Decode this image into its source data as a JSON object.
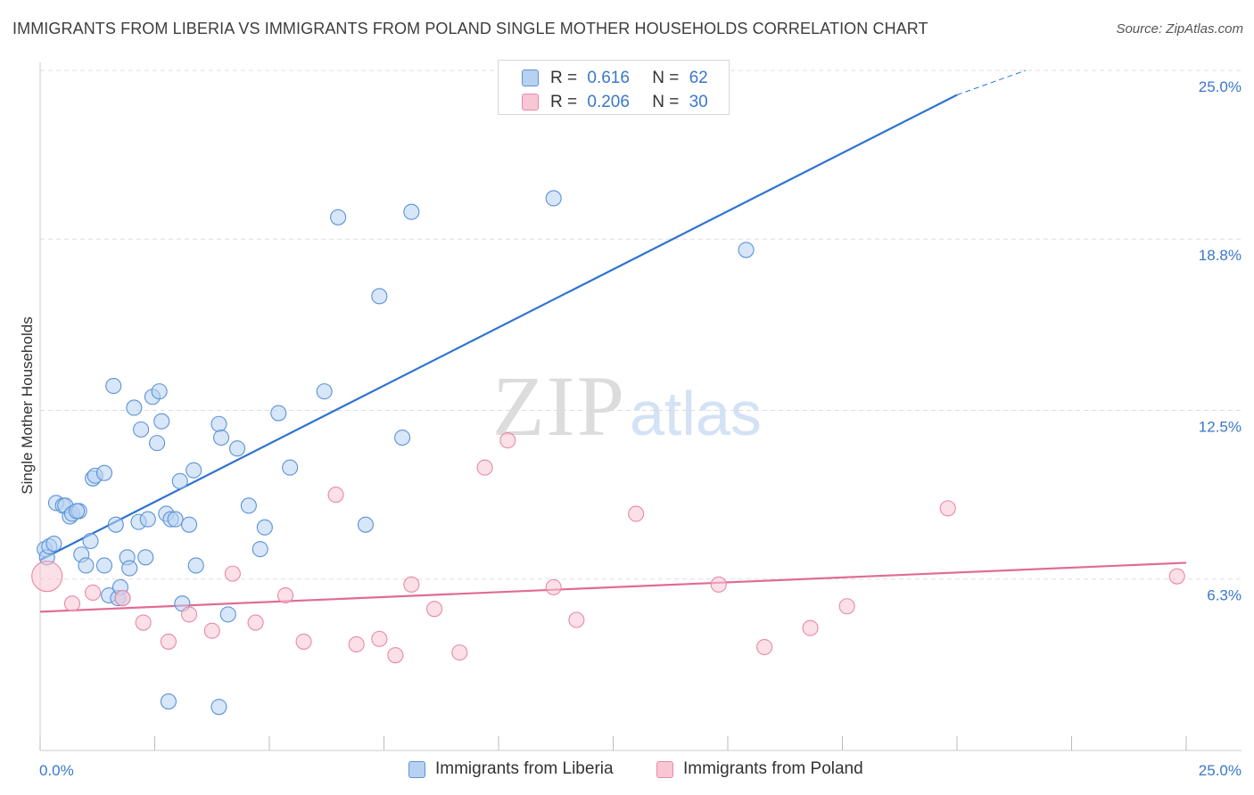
{
  "header": {
    "title": "IMMIGRANTS FROM LIBERIA VS IMMIGRANTS FROM POLAND SINGLE MOTHER HOUSEHOLDS CORRELATION CHART",
    "source": "Source: ZipAtlas.com"
  },
  "watermark": {
    "zip": "ZIP",
    "atlas": "atlas"
  },
  "legend": {
    "liberia": {
      "r_label": "R =",
      "r_value": "0.616",
      "n_label": "N =",
      "n_value": "62"
    },
    "poland": {
      "r_label": "R =",
      "r_value": "0.206",
      "n_label": "N =",
      "n_value": "30"
    }
  },
  "colors": {
    "liberia_fill": "#b7d1f2",
    "liberia_stroke": "#5b93d6",
    "liberia_line": "#2f74d0",
    "poland_fill": "#f8c6d4",
    "poland_stroke": "#e889a6",
    "poland_line": "#e06c93",
    "grid": "#dddddd",
    "tick_text": "#3a77c9"
  },
  "chart_data": {
    "type": "scatter",
    "title": "IMMIGRANTS FROM LIBERIA VS IMMIGRANTS FROM POLAND SINGLE MOTHER HOUSEHOLDS CORRELATION CHART",
    "xlabel": "",
    "ylabel": "Single Mother Households",
    "xlim": [
      0,
      25
    ],
    "ylim": [
      0,
      25
    ],
    "x_tick_labels": [
      "0.0%",
      "25.0%"
    ],
    "y_ticks": [
      6.3,
      12.5,
      18.8,
      25.0
    ],
    "y_tick_labels": [
      "6.3%",
      "12.5%",
      "18.8%",
      "25.0%"
    ],
    "grid": true,
    "legend_position": "bottom",
    "series": [
      {
        "name": "Immigrants from Liberia",
        "color": "#5b93d6",
        "trend": {
          "x": [
            0,
            20.0
          ],
          "y": [
            7.0,
            24.1
          ],
          "dashed_to": [
            21.5,
            25.0
          ]
        },
        "points": [
          [
            0.1,
            7.4
          ],
          [
            0.15,
            7.1
          ],
          [
            0.2,
            7.5
          ],
          [
            0.3,
            7.6
          ],
          [
            0.35,
            9.1
          ],
          [
            0.5,
            9.0
          ],
          [
            0.55,
            9.0
          ],
          [
            0.65,
            8.6
          ],
          [
            0.7,
            8.7
          ],
          [
            0.85,
            8.8
          ],
          [
            0.8,
            8.8
          ],
          [
            0.9,
            7.2
          ],
          [
            1.0,
            6.8
          ],
          [
            1.1,
            7.7
          ],
          [
            1.15,
            10.0
          ],
          [
            1.2,
            10.1
          ],
          [
            1.4,
            10.2
          ],
          [
            1.4,
            6.8
          ],
          [
            1.5,
            5.7
          ],
          [
            1.6,
            13.4
          ],
          [
            1.65,
            8.3
          ],
          [
            1.7,
            5.6
          ],
          [
            1.75,
            6.0
          ],
          [
            1.8,
            5.6
          ],
          [
            1.9,
            7.1
          ],
          [
            1.95,
            6.7
          ],
          [
            2.05,
            12.6
          ],
          [
            2.15,
            8.4
          ],
          [
            2.2,
            11.8
          ],
          [
            2.3,
            7.1
          ],
          [
            2.35,
            8.5
          ],
          [
            2.45,
            13.0
          ],
          [
            2.55,
            11.3
          ],
          [
            2.6,
            13.2
          ],
          [
            2.65,
            12.1
          ],
          [
            2.75,
            8.7
          ],
          [
            2.85,
            8.5
          ],
          [
            2.95,
            8.5
          ],
          [
            3.05,
            9.9
          ],
          [
            3.1,
            5.4
          ],
          [
            3.25,
            8.3
          ],
          [
            3.35,
            10.3
          ],
          [
            3.4,
            6.8
          ],
          [
            3.9,
            12.0
          ],
          [
            3.95,
            11.5
          ],
          [
            4.1,
            5.0
          ],
          [
            4.3,
            11.1
          ],
          [
            4.55,
            9.0
          ],
          [
            4.8,
            7.4
          ],
          [
            4.9,
            8.2
          ],
          [
            5.2,
            12.4
          ],
          [
            5.45,
            10.4
          ],
          [
            6.2,
            13.2
          ],
          [
            6.5,
            19.6
          ],
          [
            7.1,
            8.3
          ],
          [
            7.4,
            16.7
          ],
          [
            7.9,
            11.5
          ],
          [
            8.1,
            19.8
          ],
          [
            11.2,
            20.3
          ],
          [
            15.4,
            18.4
          ],
          [
            2.8,
            1.8
          ],
          [
            3.9,
            1.6
          ]
        ]
      },
      {
        "name": "Immigrants from Poland",
        "color": "#e889a6",
        "trend": {
          "x": [
            0,
            25.0
          ],
          "y": [
            5.1,
            6.9
          ]
        },
        "points": [
          [
            0.15,
            6.4
          ],
          [
            0.7,
            5.4
          ],
          [
            1.15,
            5.8
          ],
          [
            1.8,
            5.6
          ],
          [
            2.25,
            4.7
          ],
          [
            2.8,
            4.0
          ],
          [
            3.25,
            5.0
          ],
          [
            3.75,
            4.4
          ],
          [
            4.2,
            6.5
          ],
          [
            4.7,
            4.7
          ],
          [
            5.35,
            5.7
          ],
          [
            5.75,
            4.0
          ],
          [
            6.45,
            9.4
          ],
          [
            6.9,
            3.9
          ],
          [
            7.4,
            4.1
          ],
          [
            7.75,
            3.5
          ],
          [
            8.1,
            6.1
          ],
          [
            8.6,
            5.2
          ],
          [
            9.15,
            3.6
          ],
          [
            9.7,
            10.4
          ],
          [
            10.2,
            11.4
          ],
          [
            11.2,
            6.0
          ],
          [
            11.7,
            4.8
          ],
          [
            13.0,
            8.7
          ],
          [
            14.8,
            6.1
          ],
          [
            15.8,
            3.8
          ],
          [
            16.8,
            4.5
          ],
          [
            17.6,
            5.3
          ],
          [
            19.8,
            8.9
          ],
          [
            24.8,
            6.4
          ]
        ]
      }
    ]
  },
  "bottom_legend": {
    "liberia": "Immigrants from Liberia",
    "poland": "Immigrants from Poland"
  }
}
